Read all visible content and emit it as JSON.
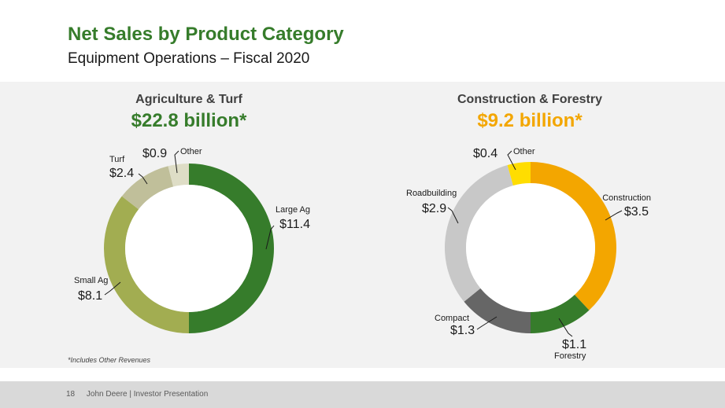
{
  "header": {
    "title": "Net Sales by Product Category",
    "subtitle": "Equipment Operations – Fiscal 2020"
  },
  "footer": {
    "page_number": "18",
    "text": "John Deere | Investor Presentation"
  },
  "colors": {
    "title_green": "#367c2b",
    "ag_total": "#367c2b",
    "cf_total": "#f3a600",
    "panel_bg": "#f2f2f2",
    "footer_bg": "#d9d9d9"
  },
  "chart_data": [
    {
      "type": "pie",
      "title": "Agriculture & Turf",
      "total_label": "$22.8 billion*",
      "footnote": "*Includes Other Revenues",
      "unit": "$ billion",
      "slices": [
        {
          "category": "Large Ag",
          "value": 11.4,
          "value_label": "$11.4",
          "color": "#367c2b"
        },
        {
          "category": "Small Ag",
          "value": 8.1,
          "value_label": "$8.1",
          "color": "#a2ad51"
        },
        {
          "category": "Turf",
          "value": 2.4,
          "value_label": "$2.4",
          "color": "#c0bf9a"
        },
        {
          "category": "Other",
          "value": 0.9,
          "value_label": "$0.9",
          "color": "#deddc6"
        }
      ]
    },
    {
      "type": "pie",
      "title": "Construction & Forestry",
      "total_label": "$9.2 billion*",
      "unit": "$ billion",
      "slices": [
        {
          "category": "Construction",
          "value": 3.5,
          "value_label": "$3.5",
          "color": "#f3a600"
        },
        {
          "category": "Forestry",
          "value": 1.1,
          "value_label": "$1.1",
          "color": "#367c2b"
        },
        {
          "category": "Compact",
          "value": 1.3,
          "value_label": "$1.3",
          "color": "#666666"
        },
        {
          "category": "Roadbuilding",
          "value": 2.9,
          "value_label": "$2.9",
          "color": "#c8c8c8"
        },
        {
          "category": "Other",
          "value": 0.4,
          "value_label": "$0.4",
          "color": "#ffdd00"
        }
      ]
    }
  ]
}
